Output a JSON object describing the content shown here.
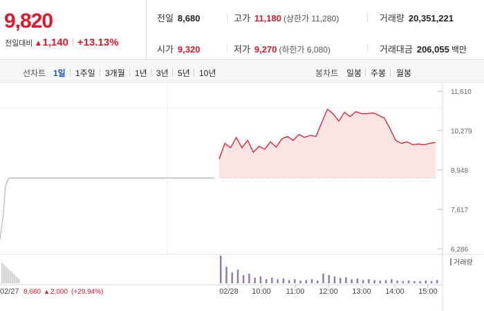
{
  "summary": {
    "price": "9,820",
    "change_label": "전일대비",
    "change_arrow": "▲",
    "change_value": "1,140",
    "change_pct": "+13.13%",
    "prev_close_label": "전일",
    "prev_close": "8,680",
    "open_label": "시가",
    "open": "9,320",
    "high_label": "고가",
    "high": "11,180",
    "high_limit": "(상한가 11,280)",
    "low_label": "저가",
    "low": "9,270",
    "low_limit": "(하한가 6,080)",
    "volume_label": "거래량",
    "volume": "20,351,221",
    "value_label": "거래대금",
    "value": "206,055",
    "value_unit": "백만"
  },
  "toolbar": {
    "line_chart_title": "선차트",
    "periods": [
      "1일",
      "1주일",
      "3개월",
      "1년",
      "3년",
      "5년",
      "10년"
    ],
    "active_period": 0,
    "candle_chart_title": "봉차트",
    "candle_periods": [
      "일봉",
      "주봉",
      "월봉"
    ]
  },
  "colors": {
    "up": "#e0182d",
    "down": "#1a56c9",
    "volume": "#8a7cb4",
    "fill": "#fbe4e4"
  },
  "chart_data": {
    "type": "line",
    "y_ticks": [
      "11,610",
      "10,279",
      "8,948",
      "7,617",
      "6,286"
    ],
    "y_tick_values": [
      11610,
      10279,
      8948,
      7617,
      6286
    ],
    "ylim": [
      6286,
      11610
    ],
    "prev_close_line": 8680,
    "volume_legend": "거래량",
    "x_ticks": [
      "02/28",
      "10:00",
      "11:00",
      "12:00",
      "13:00",
      "14:00",
      "15:00"
    ],
    "prev_day_label": {
      "date": "02/27",
      "price": "8,680",
      "arrow": "▲",
      "change": "2,000",
      "pct": "(+29.94%)"
    },
    "series": [
      {
        "x": [
          "02/27 09:00",
          "02/27 09:10",
          "02/27 09:20",
          "02/27 09:40",
          "02/27 10:00",
          "02/27 15:30"
        ],
        "values": [
          6600,
          7500,
          8400,
          8600,
          8680,
          8680
        ]
      },
      {
        "x": [
          "09:00",
          "09:10",
          "09:20",
          "09:30",
          "09:40",
          "09:50",
          "10:00",
          "10:10",
          "10:20",
          "10:30",
          "10:40",
          "10:50",
          "11:00",
          "11:10",
          "11:20",
          "11:30",
          "11:40",
          "11:50",
          "12:00",
          "12:10",
          "12:20",
          "12:30",
          "12:40",
          "12:50",
          "13:00",
          "13:10",
          "13:20",
          "13:30",
          "13:40",
          "13:50",
          "14:00",
          "14:10",
          "14:20",
          "14:30",
          "14:40",
          "14:50",
          "15:00",
          "15:10",
          "15:20"
        ],
        "values": [
          9320,
          9850,
          9700,
          10050,
          9700,
          9950,
          9550,
          9750,
          9650,
          9900,
          9720,
          10000,
          10080,
          9950,
          10150,
          10050,
          10120,
          10080,
          10550,
          11000,
          10850,
          10600,
          10900,
          10750,
          10920,
          10850,
          10850,
          10880,
          10800,
          10700,
          10350,
          9950,
          9850,
          9900,
          9800,
          9830,
          9800,
          9850,
          9880
        ]
      }
    ],
    "volume_values": [
      1.0,
      0.6,
      0.4,
      0.5,
      0.3,
      0.35,
      0.2,
      0.25,
      0.15,
      0.2,
      0.15,
      0.18,
      0.12,
      0.15,
      0.1,
      0.12,
      0.15,
      0.1,
      0.35,
      0.3,
      0.25,
      0.2,
      0.22,
      0.15,
      0.18,
      0.12,
      0.15,
      0.12,
      0.1,
      0.12,
      0.15,
      0.1,
      0.08,
      0.1,
      0.08,
      0.08,
      0.1,
      0.08,
      0.12
    ]
  }
}
